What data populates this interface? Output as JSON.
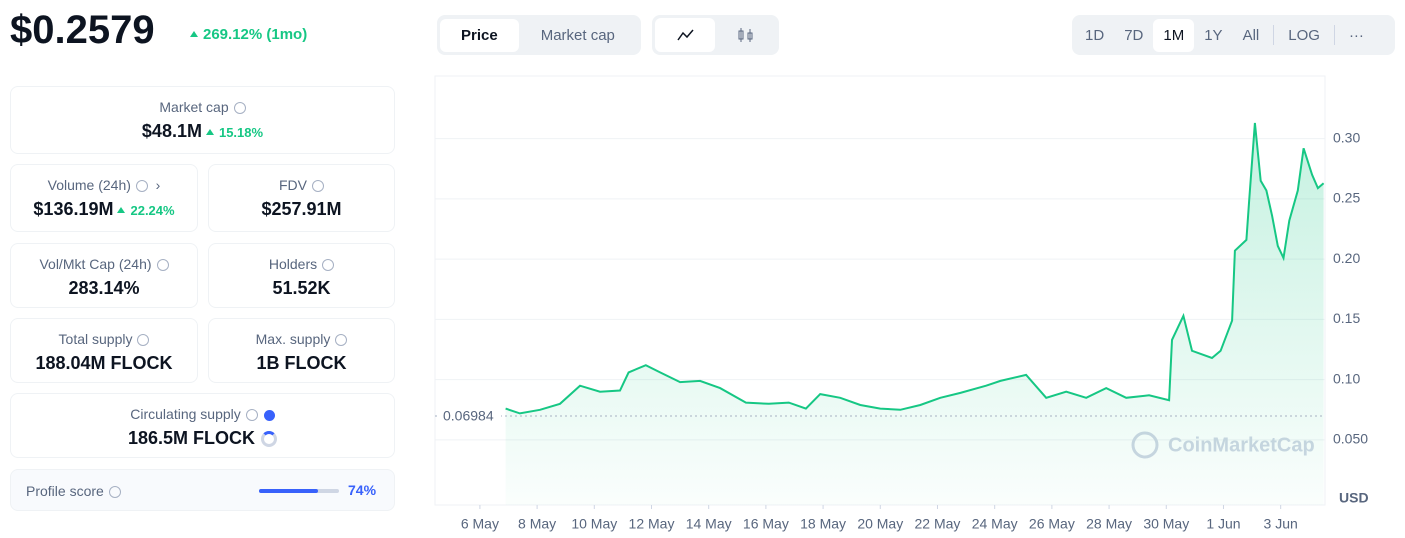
{
  "price": "$0.2579",
  "price_change": "269.12% (1mo)",
  "market_cap": {
    "label": "Market cap",
    "value": "$48.1M",
    "change": "15.18%"
  },
  "volume": {
    "label": "Volume (24h)",
    "value": "$136.19M",
    "change": "22.24%"
  },
  "fdv": {
    "label": "FDV",
    "value": "$257.91M"
  },
  "vol_mkt_cap": {
    "label": "Vol/Mkt Cap (24h)",
    "value": "283.14%"
  },
  "holders": {
    "label": "Holders",
    "value": "51.52K"
  },
  "total_supply": {
    "label": "Total supply",
    "value": "188.04M FLOCK"
  },
  "max_supply": {
    "label": "Max. supply",
    "value": "1B FLOCK"
  },
  "circulating_supply": {
    "label": "Circulating supply",
    "value": "186.5M FLOCK"
  },
  "profile_score": {
    "label": "Profile score",
    "value": 74,
    "value_label": "74%"
  },
  "tabs": [
    "Price",
    "Market cap"
  ],
  "ranges": [
    "1D",
    "7D",
    "1M",
    "1Y",
    "All",
    "LOG"
  ],
  "chart_data": {
    "type": "line",
    "color": "#16c784",
    "y_unit": "USD",
    "watermark": "CoinMarketCap",
    "baseline": 0.06984,
    "x": [
      6.9,
      7.4,
      8.1,
      8.8,
      9.5,
      10.2,
      10.9,
      11.2,
      11.8,
      12.3,
      13.0,
      13.7,
      14.4,
      15.3,
      16.1,
      16.8,
      17.4,
      17.9,
      18.6,
      19.3,
      20.0,
      20.7,
      21.4,
      22.1,
      22.8,
      23.7,
      24.2,
      25.1,
      25.8,
      26.5,
      27.2,
      27.9,
      28.6,
      29.4,
      30.1,
      30.2,
      30.6,
      30.9,
      31.6,
      31.9,
      32.3,
      32.4,
      32.8,
      32.9,
      33.1,
      33.3,
      33.5,
      33.7,
      33.9,
      34.1,
      34.3,
      34.6,
      34.8,
      35.1,
      35.3,
      35.5
    ],
    "values": [
      0.076,
      0.072,
      0.075,
      0.08,
      0.095,
      0.09,
      0.091,
      0.106,
      0.112,
      0.106,
      0.098,
      0.099,
      0.093,
      0.081,
      0.08,
      0.081,
      0.076,
      0.088,
      0.085,
      0.079,
      0.076,
      0.075,
      0.079,
      0.085,
      0.089,
      0.095,
      0.099,
      0.104,
      0.085,
      0.09,
      0.085,
      0.093,
      0.085,
      0.087,
      0.083,
      0.133,
      0.153,
      0.124,
      0.118,
      0.124,
      0.149,
      0.207,
      0.216,
      0.249,
      0.313,
      0.265,
      0.257,
      0.236,
      0.211,
      0.201,
      0.232,
      0.257,
      0.292,
      0.27,
      0.259,
      0.263
    ],
    "xlim": [
      4.43,
      35.55
    ],
    "ylim": [
      -0.004,
      0.352
    ],
    "xticks": [
      {
        "value": 6,
        "label": "6 May"
      },
      {
        "value": 8,
        "label": "8 May"
      },
      {
        "value": 10,
        "label": "10 May"
      },
      {
        "value": 12,
        "label": "12 May"
      },
      {
        "value": 14,
        "label": "14 May"
      },
      {
        "value": 16,
        "label": "16 May"
      },
      {
        "value": 18,
        "label": "18 May"
      },
      {
        "value": 20,
        "label": "20 May"
      },
      {
        "value": 22,
        "label": "22 May"
      },
      {
        "value": 24,
        "label": "24 May"
      },
      {
        "value": 26,
        "label": "26 May"
      },
      {
        "value": 28,
        "label": "28 May"
      },
      {
        "value": 30,
        "label": "30 May"
      },
      {
        "value": 32,
        "label": "1 Jun"
      },
      {
        "value": 34,
        "label": "3 Jun"
      }
    ],
    "yticks": [
      {
        "value": 0.05,
        "label": "0.050"
      },
      {
        "value": 0.1,
        "label": "0.10"
      },
      0.15,
      {
        "value": 0.2,
        "label": "0.20"
      },
      0.25,
      {
        "value": 0.3,
        "label": "0.30"
      }
    ],
    "grid": true
  }
}
